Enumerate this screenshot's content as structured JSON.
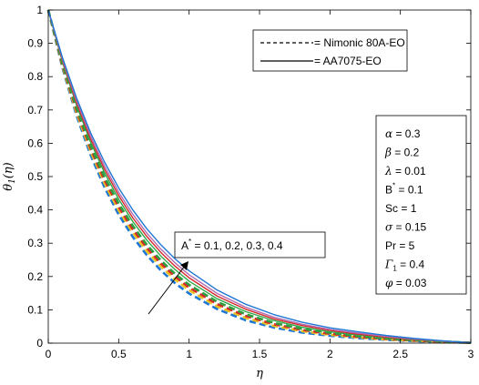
{
  "chart_data": {
    "type": "line",
    "xlabel": "η",
    "ylabel": "θ1(η)",
    "xlim": [
      0,
      3
    ],
    "ylim": [
      0,
      1
    ],
    "x_ticks": [
      "0",
      "0.5",
      "1",
      "1.5",
      "2",
      "2.5",
      "3"
    ],
    "y_ticks": [
      "0",
      "0.1",
      "0.2",
      "0.3",
      "0.4",
      "0.5",
      "0.6",
      "0.7",
      "0.8",
      "0.9",
      "1"
    ],
    "grid": false,
    "legend_position": "top-right",
    "legend": [
      {
        "label": "= Nimonic 80A-EO",
        "style": "dashed"
      },
      {
        "label": "= AA7075-EO",
        "style": "solid"
      }
    ],
    "parameter_box": [
      {
        "sym": "α",
        "val": " = 0.3"
      },
      {
        "sym": "β",
        "val": " = 0.2"
      },
      {
        "sym": "λ",
        "val": " = 0.01"
      },
      {
        "sym": "B*",
        "val": " = 0.1"
      },
      {
        "sym": "Sc",
        "val": " = 1"
      },
      {
        "sym": "σ",
        "val": " = 0.15"
      },
      {
        "sym": "Pr",
        "val": " = 5"
      },
      {
        "sym": "Γ1",
        "val": " = 0.4"
      },
      {
        "sym": "φ",
        "val": " = 0.03"
      }
    ],
    "annotation": "A* = 0.1, 0.2, 0.3, 0.4",
    "annotation_prefix": "A",
    "annotation_sup": "*",
    "annotation_rest": " = 0.1, 0.2, 0.3, 0.4",
    "x": [
      0,
      0.1,
      0.2,
      0.3,
      0.4,
      0.5,
      0.6,
      0.7,
      0.8,
      0.9,
      1.0,
      1.2,
      1.4,
      1.6,
      1.8,
      2.0,
      2.2,
      2.4,
      2.6,
      2.8,
      3.0
    ],
    "series": [
      {
        "style": "dashed",
        "color": "#1f77d4",
        "values": [
          1,
          0.827,
          0.684,
          0.565,
          0.467,
          0.386,
          0.319,
          0.264,
          0.218,
          0.18,
          0.149,
          0.102,
          0.069,
          0.047,
          0.032,
          0.022,
          0.015,
          0.01,
          0.006,
          0.003,
          0.001
        ]
      },
      {
        "style": "dashed",
        "color": "#e8c020",
        "values": [
          1,
          0.832,
          0.692,
          0.576,
          0.479,
          0.399,
          0.332,
          0.276,
          0.23,
          0.191,
          0.159,
          0.11,
          0.076,
          0.052,
          0.036,
          0.025,
          0.017,
          0.011,
          0.007,
          0.004,
          0.001
        ]
      },
      {
        "style": "dashed",
        "color": "#d62a2a",
        "values": [
          1,
          0.836,
          0.7,
          0.585,
          0.489,
          0.409,
          0.342,
          0.286,
          0.239,
          0.2,
          0.167,
          0.117,
          0.082,
          0.057,
          0.04,
          0.028,
          0.019,
          0.013,
          0.008,
          0.004,
          0.001
        ]
      },
      {
        "style": "dashed",
        "color": "#2e9e3e",
        "values": [
          1,
          0.84,
          0.706,
          0.593,
          0.498,
          0.419,
          0.352,
          0.295,
          0.248,
          0.208,
          0.175,
          0.124,
          0.087,
          0.061,
          0.043,
          0.031,
          0.021,
          0.014,
          0.009,
          0.005,
          0.001
        ]
      },
      {
        "style": "solid",
        "color": "#2ea84a",
        "values": [
          1,
          0.845,
          0.715,
          0.604,
          0.511,
          0.432,
          0.365,
          0.309,
          0.261,
          0.221,
          0.186,
          0.133,
          0.095,
          0.068,
          0.048,
          0.034,
          0.024,
          0.016,
          0.01,
          0.005,
          0.001
        ]
      },
      {
        "style": "solid",
        "color": "#d62a2a",
        "values": [
          1,
          0.849,
          0.722,
          0.613,
          0.521,
          0.443,
          0.376,
          0.32,
          0.272,
          0.231,
          0.196,
          0.141,
          0.102,
          0.073,
          0.053,
          0.038,
          0.027,
          0.018,
          0.011,
          0.006,
          0.001
        ]
      },
      {
        "style": "solid",
        "color": "#b06ab0",
        "values": [
          1,
          0.853,
          0.729,
          0.622,
          0.531,
          0.453,
          0.387,
          0.33,
          0.282,
          0.241,
          0.205,
          0.149,
          0.108,
          0.078,
          0.057,
          0.041,
          0.03,
          0.02,
          0.012,
          0.006,
          0.001
        ]
      },
      {
        "style": "solid",
        "color": "#1f77d4",
        "values": [
          1,
          0.858,
          0.737,
          0.632,
          0.543,
          0.466,
          0.4,
          0.343,
          0.295,
          0.253,
          0.217,
          0.159,
          0.117,
          0.086,
          0.063,
          0.046,
          0.034,
          0.023,
          0.014,
          0.007,
          0.001
        ]
      }
    ]
  }
}
